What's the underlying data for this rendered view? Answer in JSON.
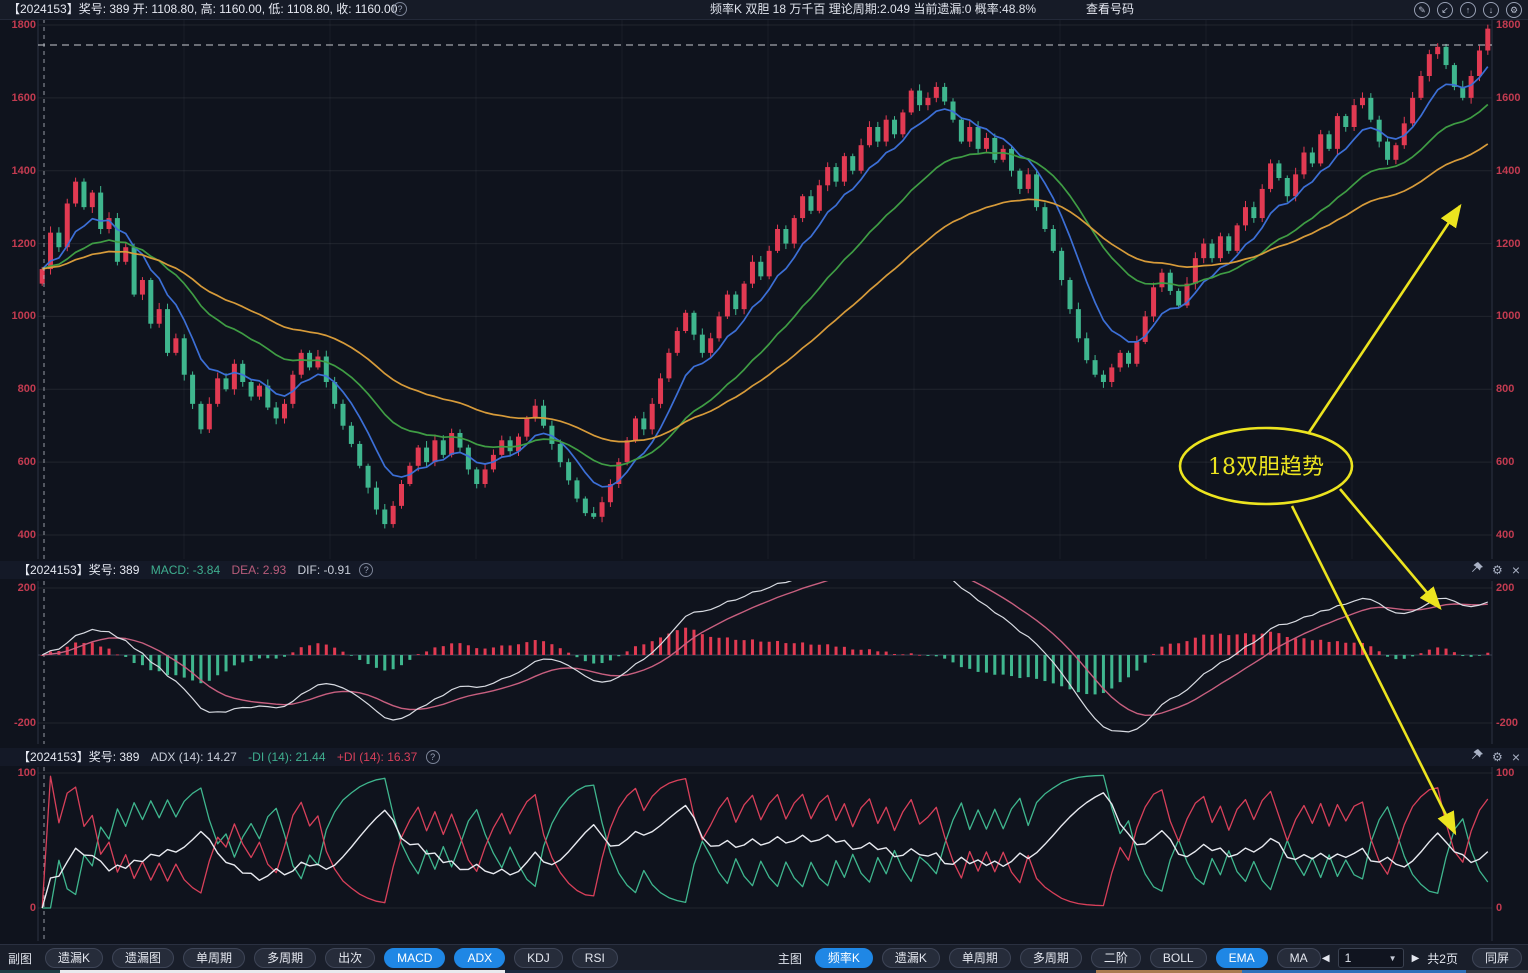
{
  "topbar": {
    "left": "【2024153】奖号: 389  开: 1108.80, 高: 1160.00, 低: 1108.80, 收: 1160.00",
    "mid": "频率K  双胆  18  万千百  理论周期:2.049  当前遗漏:0  概率:48.8%",
    "view_numbers": "查看号码"
  },
  "icons": {
    "edit": "✎",
    "pan": "↙",
    "up": "↑",
    "down": "↓",
    "gear": "⚙",
    "close": "×",
    "help": "?",
    "prev": "◀",
    "next": "▶",
    "caret": "▼"
  },
  "macd_header": {
    "title": "【2024153】奖号: 389",
    "macd": "MACD: -3.84",
    "dea": "DEA: 2.93",
    "dif": "DIF: -0.91"
  },
  "adx_header": {
    "title": "【2024153】奖号: 389",
    "adx": "ADX (14): 14.27",
    "mdi": "-DI (14): 21.44",
    "pdi": "+DI (14): 16.37"
  },
  "annotation": {
    "label": "18双胆趋势",
    "color": "#ece41f"
  },
  "toolbar": {
    "left_label": "副图",
    "left_buttons": [
      {
        "label": "遗漏K",
        "active": false
      },
      {
        "label": "遗漏图",
        "active": false
      },
      {
        "label": "单周期",
        "active": false
      },
      {
        "label": "多周期",
        "active": false
      },
      {
        "label": "出次",
        "active": false
      },
      {
        "label": "MACD",
        "active": true
      },
      {
        "label": "ADX",
        "active": true
      },
      {
        "label": "KDJ",
        "active": false
      },
      {
        "label": "RSI",
        "active": false
      }
    ],
    "center_label": "主图",
    "center_buttons": [
      {
        "label": "频率K",
        "active": true
      },
      {
        "label": "遗漏K",
        "active": false
      },
      {
        "label": "单周期",
        "active": false
      },
      {
        "label": "多周期",
        "active": false
      },
      {
        "label": "二阶",
        "active": false
      },
      {
        "label": "BOLL",
        "active": false
      },
      {
        "label": "EMA",
        "active": true
      },
      {
        "label": "MA",
        "active": false
      }
    ],
    "pager": {
      "page": "1",
      "total": "共2页",
      "same_screen": "同屏"
    }
  },
  "colors": {
    "up": "#e13a52",
    "down": "#3fb68e",
    "ema_fast": "#3c6fd6",
    "ema_mid": "#3f9d44",
    "ema_slow": "#d79b3a",
    "axis_label": "#c23b50",
    "dea_line": "#c75f7f",
    "dif_line": "#d8dbe2",
    "adx_line": "#e8eaf0",
    "active_button": "#1f87e5",
    "annotation": "#ece41f"
  },
  "bottom_strip": [
    {
      "color": "#1c3f46",
      "from": 0,
      "to": 60
    },
    {
      "color": "#e9eaee",
      "from": 60,
      "to": 505
    },
    {
      "color": "#19293f",
      "from": 505,
      "to": 1096
    },
    {
      "color": "#a87a50",
      "from": 1096,
      "to": 1242
    },
    {
      "color": "#2e70ba",
      "from": 1242,
      "to": 1466
    },
    {
      "color": "#343944",
      "from": 1466,
      "to": 1528
    }
  ],
  "chart_data": [
    {
      "type": "candlestick",
      "title": "频率K 双胆 18 万千百",
      "ylim": [
        400,
        1800
      ],
      "yticks": [
        "1800",
        "1600",
        "1400",
        "1200",
        "1000",
        "800",
        "600",
        "400"
      ],
      "grid": true,
      "dashed_level": 1745,
      "readout": {
        "open": "1108.80",
        "high": "1160.00",
        "low": "1108.80",
        "close": "1160.00"
      },
      "overlays": [
        {
          "name": "EMA fast",
          "color": "#3c6fd6"
        },
        {
          "name": "EMA mid",
          "color": "#3f9d44"
        },
        {
          "name": "EMA slow",
          "color": "#d79b3a"
        }
      ],
      "closes": [
        1130,
        1230,
        1190,
        1310,
        1370,
        1300,
        1340,
        1240,
        1270,
        1150,
        1190,
        1060,
        1100,
        980,
        1020,
        900,
        940,
        840,
        760,
        690,
        760,
        830,
        800,
        870,
        820,
        780,
        810,
        750,
        720,
        760,
        840,
        900,
        860,
        890,
        820,
        760,
        700,
        650,
        590,
        530,
        470,
        430,
        480,
        540,
        590,
        640,
        600,
        660,
        620,
        680,
        640,
        580,
        540,
        580,
        620,
        660,
        630,
        670,
        720,
        755,
        700,
        650,
        600,
        550,
        500,
        460,
        450,
        490,
        540,
        600,
        660,
        720,
        690,
        760,
        830,
        900,
        960,
        1010,
        950,
        900,
        940,
        1000,
        1060,
        1020,
        1090,
        1150,
        1110,
        1180,
        1240,
        1200,
        1270,
        1330,
        1290,
        1360,
        1410,
        1370,
        1440,
        1400,
        1470,
        1520,
        1480,
        1540,
        1500,
        1560,
        1620,
        1580,
        1600,
        1630,
        1590,
        1540,
        1480,
        1520,
        1460,
        1490,
        1430,
        1460,
        1400,
        1350,
        1390,
        1300,
        1240,
        1180,
        1100,
        1020,
        940,
        880,
        840,
        820,
        860,
        900,
        870,
        930,
        1000,
        1080,
        1120,
        1070,
        1030,
        1090,
        1160,
        1200,
        1160,
        1220,
        1180,
        1250,
        1300,
        1270,
        1350,
        1420,
        1380,
        1330,
        1390,
        1450,
        1420,
        1500,
        1460,
        1550,
        1520,
        1580,
        1600,
        1540,
        1480,
        1430,
        1470,
        1530,
        1600,
        1660,
        1720,
        1740,
        1690,
        1630,
        1600,
        1660,
        1730,
        1790
      ]
    },
    {
      "type": "macd",
      "ylim": [
        -200,
        200
      ],
      "yticks": [
        "200",
        "-200"
      ],
      "readout": {
        "MACD": "-3.84",
        "DEA": "2.93",
        "DIF": "-0.91"
      },
      "series_computed_from": "chart_data.0.closes (12,26,9)"
    },
    {
      "type": "line",
      "name": "ADX / DMI",
      "ylim": [
        0,
        100
      ],
      "yticks": [
        "100",
        "0"
      ],
      "readout": {
        "ADX": "14.27",
        "-DI": "21.44",
        "+DI": "16.37"
      },
      "series_computed_from": "chart_data.0.closes (DMI 14)"
    }
  ]
}
